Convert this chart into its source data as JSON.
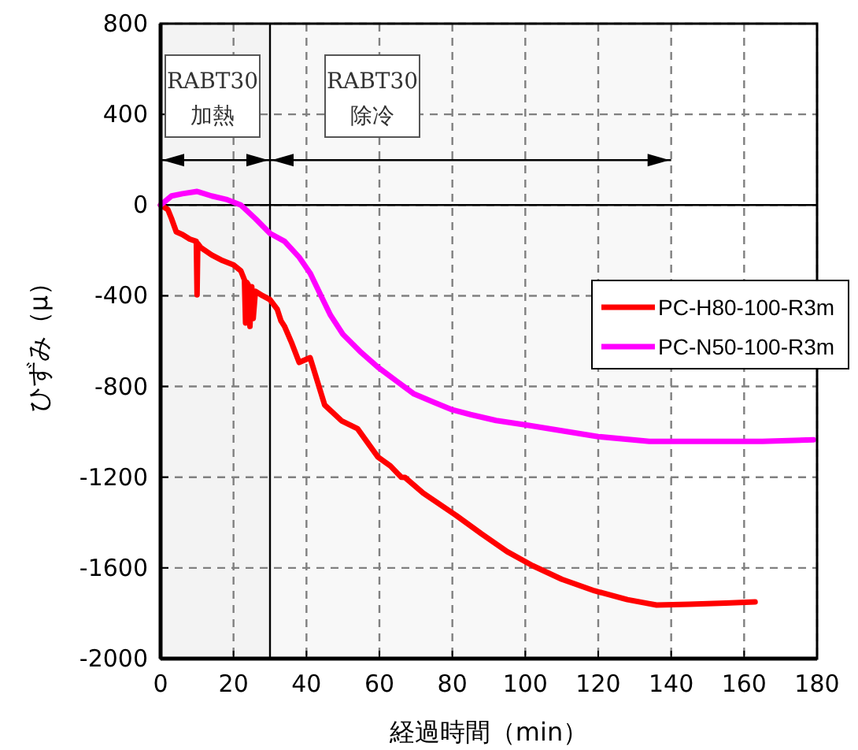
{
  "chart_data": {
    "type": "line",
    "xlabel": "経過時間（min）",
    "ylabel": "ひずみ（μ）",
    "xlim": [
      0,
      180
    ],
    "xticks": [
      0,
      20,
      40,
      60,
      80,
      100,
      120,
      140,
      160,
      180
    ],
    "ylim": [
      -2000,
      800
    ],
    "yticks": [
      -2000,
      -1600,
      -1200,
      -800,
      -400,
      0,
      400,
      800
    ],
    "grid": true,
    "legend": "right",
    "marker": "none",
    "line_style": "solid",
    "ref_lines": [
      {
        "axis": "y",
        "value": 0,
        "color": "#000000"
      },
      {
        "axis": "x",
        "value": 30,
        "color": "#000000"
      }
    ],
    "bands": [
      {
        "axis": "x",
        "from": 0,
        "to": 30,
        "label": "RABT30\n加熱"
      },
      {
        "axis": "x",
        "from": 30,
        "to": 140,
        "label": "RABT30\n除冷"
      }
    ],
    "series": [
      {
        "name": "PC-H80-100-R3m",
        "color": "#ff0000",
        "x": [
          0,
          2,
          3,
          4.3,
          6,
          8,
          9.8,
          10,
          10.2,
          11,
          14,
          17,
          20,
          22,
          23,
          23.3,
          23.6,
          24,
          24.5,
          25,
          25.4,
          26,
          28,
          30,
          32,
          33,
          34,
          36,
          38,
          41,
          45,
          49.6,
          54,
          59.6,
          63,
          66,
          67,
          72,
          81,
          88,
          95,
          102,
          110,
          119,
          128,
          136,
          145,
          155,
          163
        ],
        "values": [
          0,
          -20,
          -60,
          -118,
          -130,
          -150,
          -160,
          -396,
          -170,
          -187,
          -220,
          -245,
          -264,
          -290,
          -330,
          -520,
          -340,
          -350,
          -535,
          -360,
          -500,
          -380,
          -400,
          -417,
          -460,
          -510,
          -535,
          -610,
          -694,
          -673,
          -882,
          -951,
          -986,
          -1111,
          -1150,
          -1200,
          -1201,
          -1270,
          -1368,
          -1450,
          -1528,
          -1590,
          -1650,
          -1701,
          -1740,
          -1764,
          -1760,
          -1755,
          -1750
        ]
      },
      {
        "name": "PC-N50-100-R3m",
        "color": "#ff00ff",
        "x": [
          0,
          3,
          6,
          10,
          14,
          18,
          22,
          26,
          30,
          34,
          38,
          41,
          44,
          46.6,
          50,
          55,
          59.6,
          65,
          69.5,
          75,
          80,
          85,
          92,
          101,
          110,
          120,
          134,
          150,
          165,
          179
        ],
        "values": [
          0,
          40,
          50,
          60,
          40,
          25,
          0,
          -60,
          -125,
          -160,
          -230,
          -300,
          -400,
          -486,
          -570,
          -650,
          -715,
          -780,
          -833,
          -870,
          -903,
          -924,
          -950,
          -972,
          -995,
          -1021,
          -1042,
          -1042,
          -1042,
          -1035
        ]
      }
    ]
  }
}
